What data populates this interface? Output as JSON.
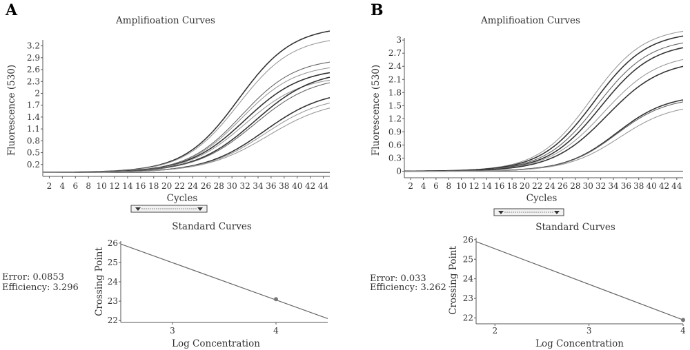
{
  "panels": [
    {
      "label": "A",
      "amplification": {
        "title": "Amplifioation Curves",
        "xlabel": "Cycles",
        "ylabel": "Fluorescence (530)"
      },
      "standard": {
        "title": "Standard Curves",
        "xlabel": "Log Concentration",
        "ylabel": "Crossing Point",
        "error_text": "Error: 0.0853",
        "efficiency_text": "Efficiency: 3.296"
      }
    },
    {
      "label": "B",
      "amplification": {
        "title": "Amplifioation Curves",
        "xlabel": "Cycles",
        "ylabel": "Fluorescence (530)"
      },
      "standard": {
        "title": "Standard Curves",
        "xlabel": "Log Concentration",
        "ylabel": "Crossing Point",
        "error_text": "Error: 0.033",
        "efficiency_text": "Efficiency: 3.262"
      }
    }
  ],
  "colors": {
    "curve_dark": "#333333",
    "curve_mid": "#666666",
    "curve_light": "#999999",
    "axis": "#555555",
    "standard_line": "#666666",
    "point": "#777777"
  },
  "chart_data": [
    {
      "type": "line",
      "panel": "A",
      "title": "Amplifioation Curves",
      "xlabel": "Cycles",
      "ylabel": "Fluorescence (530)",
      "xlim": [
        1,
        45
      ],
      "ylim": [
        -0.1,
        3.35
      ],
      "x_ticks": [
        2,
        4,
        6,
        8,
        10,
        12,
        14,
        16,
        18,
        20,
        22,
        24,
        26,
        28,
        30,
        32,
        34,
        36,
        38,
        40,
        42,
        44
      ],
      "y_ticks": [
        0.2,
        0.5,
        0.8,
        1.1,
        1.4,
        1.7,
        2,
        2.3,
        2.6,
        2.9,
        3.2
      ],
      "baseline": 0.0,
      "series": [
        {
          "midpoint": 31.0,
          "plateau": 3.7,
          "slope": 0.24,
          "shade": "dark"
        },
        {
          "midpoint": 31.0,
          "plateau": 3.45,
          "slope": 0.24,
          "shade": "light"
        },
        {
          "midpoint": 31.5,
          "plateau": 2.9,
          "slope": 0.24,
          "shade": "mid"
        },
        {
          "midpoint": 31.5,
          "plateau": 2.75,
          "slope": 0.24,
          "shade": "light"
        },
        {
          "midpoint": 32.0,
          "plateau": 2.65,
          "slope": 0.23,
          "shade": "dark"
        },
        {
          "midpoint": 32.0,
          "plateau": 2.45,
          "slope": 0.23,
          "shade": "light"
        },
        {
          "midpoint": 33.5,
          "plateau": 2.6,
          "slope": 0.22,
          "shade": "dark"
        },
        {
          "midpoint": 33.5,
          "plateau": 2.45,
          "slope": 0.22,
          "shade": "mid"
        },
        {
          "midpoint": 35.0,
          "plateau": 2.1,
          "slope": 0.22,
          "shade": "dark"
        },
        {
          "midpoint": 35.0,
          "plateau": 1.95,
          "slope": 0.22,
          "shade": "light"
        },
        {
          "midpoint": 35.5,
          "plateau": 1.85,
          "slope": 0.21,
          "shade": "light"
        }
      ]
    },
    {
      "type": "line",
      "panel": "B",
      "title": "Amplifioation Curves",
      "xlabel": "Cycles",
      "ylabel": "Fluorescence (530)",
      "xlim": [
        1,
        45
      ],
      "ylim": [
        -0.15,
        3.05
      ],
      "x_ticks": [
        2,
        4,
        6,
        8,
        10,
        12,
        14,
        16,
        18,
        20,
        22,
        24,
        26,
        28,
        30,
        32,
        34,
        36,
        38,
        40,
        42,
        44
      ],
      "y_ticks": [
        0,
        0.3,
        0.6,
        0.9,
        1.2,
        1.5,
        1.8,
        2.1,
        2.4,
        2.7,
        3
      ],
      "baseline": 0.0,
      "series": [
        {
          "midpoint": 30.5,
          "plateau": 3.3,
          "slope": 0.24,
          "shade": "light"
        },
        {
          "midpoint": 31.0,
          "plateau": 3.2,
          "slope": 0.24,
          "shade": "dark"
        },
        {
          "midpoint": 31.5,
          "plateau": 3.05,
          "slope": 0.24,
          "shade": "mid"
        },
        {
          "midpoint": 32.0,
          "plateau": 2.95,
          "slope": 0.24,
          "shade": "dark"
        },
        {
          "midpoint": 32.5,
          "plateau": 2.7,
          "slope": 0.23,
          "shade": "light"
        },
        {
          "midpoint": 33.0,
          "plateau": 2.55,
          "slope": 0.23,
          "shade": "dark"
        },
        {
          "midpoint": 34.5,
          "plateau": 1.75,
          "slope": 0.25,
          "shade": "dark"
        },
        {
          "midpoint": 34.5,
          "plateau": 1.7,
          "slope": 0.25,
          "shade": "mid"
        },
        {
          "midpoint": 35.0,
          "plateau": 1.55,
          "slope": 0.24,
          "shade": "light"
        }
      ]
    },
    {
      "type": "scatter",
      "panel": "A",
      "title": "Standard Curves",
      "xlabel": "Log Concentration",
      "ylabel": "Crossing Point",
      "xlim": [
        2.5,
        4.5
      ],
      "ylim": [
        21.9,
        26.1
      ],
      "x_ticks": [
        3,
        4
      ],
      "y_ticks": [
        22,
        23,
        24,
        25,
        26
      ],
      "fit_line": {
        "x": [
          2.5,
          4.5
        ],
        "y": [
          25.95,
          22.1
        ]
      },
      "points": [
        {
          "x": 4,
          "y": 23.1
        }
      ]
    },
    {
      "type": "scatter",
      "panel": "B",
      "title": "Standard Curves",
      "xlabel": "Log Concentration",
      "ylabel": "Crossing Point",
      "xlim": [
        1.8,
        4.0
      ],
      "ylim": [
        21.7,
        26.1
      ],
      "x_ticks": [
        2,
        3,
        4
      ],
      "y_ticks": [
        22,
        23,
        24,
        25,
        26
      ],
      "fit_line": {
        "x": [
          1.8,
          4.0
        ],
        "y": [
          25.9,
          21.9
        ]
      },
      "points": [
        {
          "x": 4,
          "y": 21.9
        }
      ]
    }
  ]
}
